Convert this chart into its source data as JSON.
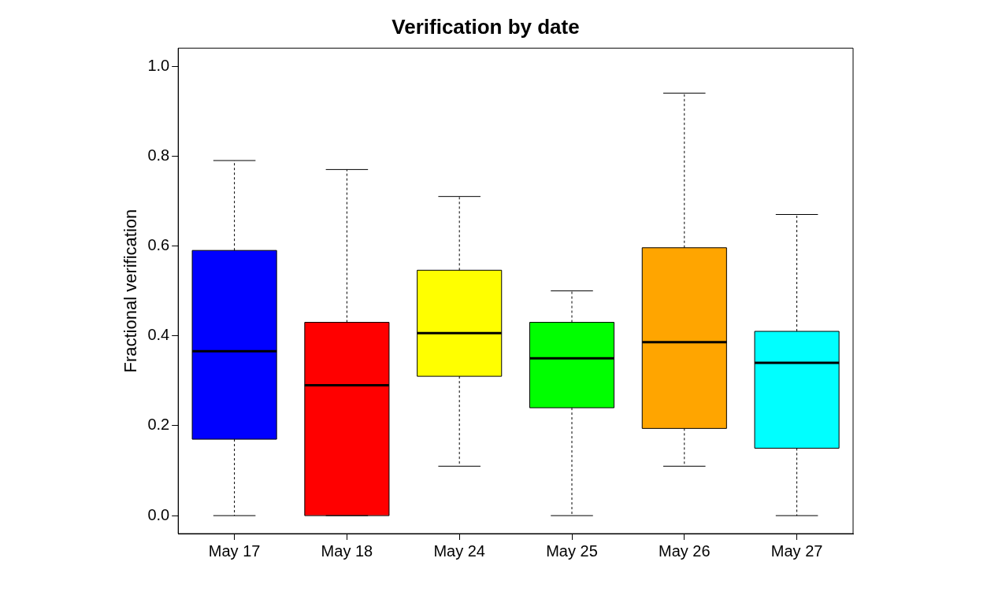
{
  "chart_data": {
    "type": "box",
    "title": "Verification by date",
    "ylabel": "Fractional verification",
    "categories": [
      "May 17",
      "May 18",
      "May 24",
      "May 25",
      "May 26",
      "May 27"
    ],
    "colors": [
      "#0000ff",
      "#ff0000",
      "#ffff00",
      "#00ff00",
      "#ffa500",
      "#00ffff"
    ],
    "boxes": [
      {
        "low": 0,
        "q1": 0.17,
        "median": 0.366,
        "q3": 0.59,
        "high": 0.79
      },
      {
        "low": 0,
        "q1": 0,
        "median": 0.29,
        "q3": 0.43,
        "high": 0.77
      },
      {
        "low": 0.11,
        "q1": 0.31,
        "median": 0.406,
        "q3": 0.546,
        "high": 0.71
      },
      {
        "low": 0,
        "q1": 0.24,
        "median": 0.35,
        "q3": 0.43,
        "high": 0.5
      },
      {
        "low": 0.11,
        "q1": 0.194,
        "median": 0.386,
        "q3": 0.596,
        "high": 0.94
      },
      {
        "low": 0,
        "q1": 0.15,
        "median": 0.34,
        "q3": 0.41,
        "high": 0.67
      }
    ],
    "ylim": [
      -0.04,
      1.04
    ],
    "yticks": [
      {
        "value": 0,
        "label": "0.0"
      },
      {
        "value": 0.2,
        "label": "0.2"
      },
      {
        "value": 0.4,
        "label": "0.4"
      },
      {
        "value": 0.6,
        "label": "0.6"
      },
      {
        "value": 0.8,
        "label": "0.8"
      },
      {
        "value": 1,
        "label": "1.0"
      }
    ],
    "grid": false,
    "legend": false
  }
}
